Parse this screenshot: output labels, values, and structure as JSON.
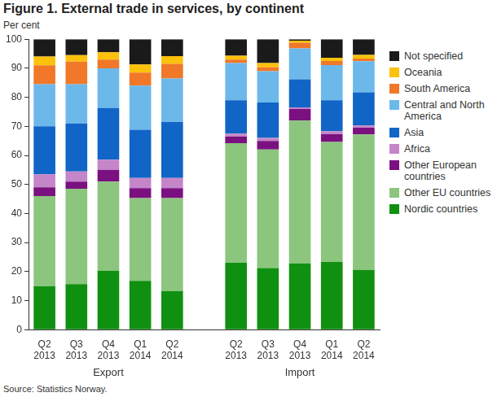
{
  "chart_data": {
    "type": "bar",
    "title": "Figure 1. External trade in services, by continent",
    "y_label": "Per cent",
    "source": "Source: Statistics Norway.",
    "stacked": true,
    "grid": false,
    "legend": "right",
    "categories": [
      "Q2 2013",
      "Q3 2013",
      "Q4 2013",
      "Q1 2014",
      "Q2 2014",
      null,
      "Q2 2013",
      "Q3 2013",
      "Q4 2013",
      "Q1 2014",
      "Q2 2014"
    ],
    "group_labels": [
      "Export",
      "Import"
    ],
    "ylim": [
      0,
      100
    ],
    "yticks": [
      0,
      10,
      20,
      30,
      40,
      50,
      60,
      70,
      80,
      90,
      100
    ],
    "series": [
      {
        "name": "Nordic countries",
        "color": "#109010",
        "values": [
          15,
          15.7,
          20.3,
          16.8,
          13.3,
          null,
          23,
          21.2,
          22.8,
          23.3,
          20.6
        ]
      },
      {
        "name": "Other EU countries",
        "color": "#8cc57e",
        "values": [
          31,
          32.8,
          30.7,
          28.5,
          32,
          null,
          41.2,
          40.8,
          49.2,
          41.3,
          46.6
        ]
      },
      {
        "name": "Other European countries",
        "color": "#7b1180",
        "values": [
          3,
          2.5,
          4,
          3.4,
          3.4,
          null,
          2.3,
          3,
          4,
          2.7,
          2.3
        ]
      },
      {
        "name": "Africa",
        "color": "#c486c8",
        "values": [
          4.5,
          3.5,
          3.5,
          3.5,
          3.5,
          null,
          1,
          1,
          0.5,
          1,
          0.8
        ]
      },
      {
        "name": "Asia",
        "color": "#1065c6",
        "values": [
          16.5,
          16.5,
          17.8,
          16.6,
          19.3,
          null,
          11.5,
          12.2,
          9.7,
          10.7,
          11.4
        ]
      },
      {
        "name": "Central and North America",
        "color": "#6cb8eb",
        "values": [
          14.5,
          13.5,
          13.7,
          15.2,
          15,
          null,
          12.8,
          10.8,
          10.6,
          12.1,
          10.7
        ]
      },
      {
        "name": "South America",
        "color": "#f07828",
        "values": [
          6.5,
          7.8,
          3,
          4.5,
          5,
          null,
          1.2,
          1.3,
          2,
          1.4,
          0.9
        ]
      },
      {
        "name": "Oceania",
        "color": "#fcc10a",
        "values": [
          3,
          2.2,
          2.5,
          2.8,
          2.7,
          null,
          1.3,
          1.5,
          0.7,
          1.1,
          1.3
        ]
      },
      {
        "name": "Not specified",
        "color": "#1a1a1a",
        "values": [
          6,
          5.5,
          4.5,
          8.7,
          5.8,
          null,
          5.7,
          8.2,
          0.5,
          6.4,
          5.4
        ]
      }
    ]
  }
}
